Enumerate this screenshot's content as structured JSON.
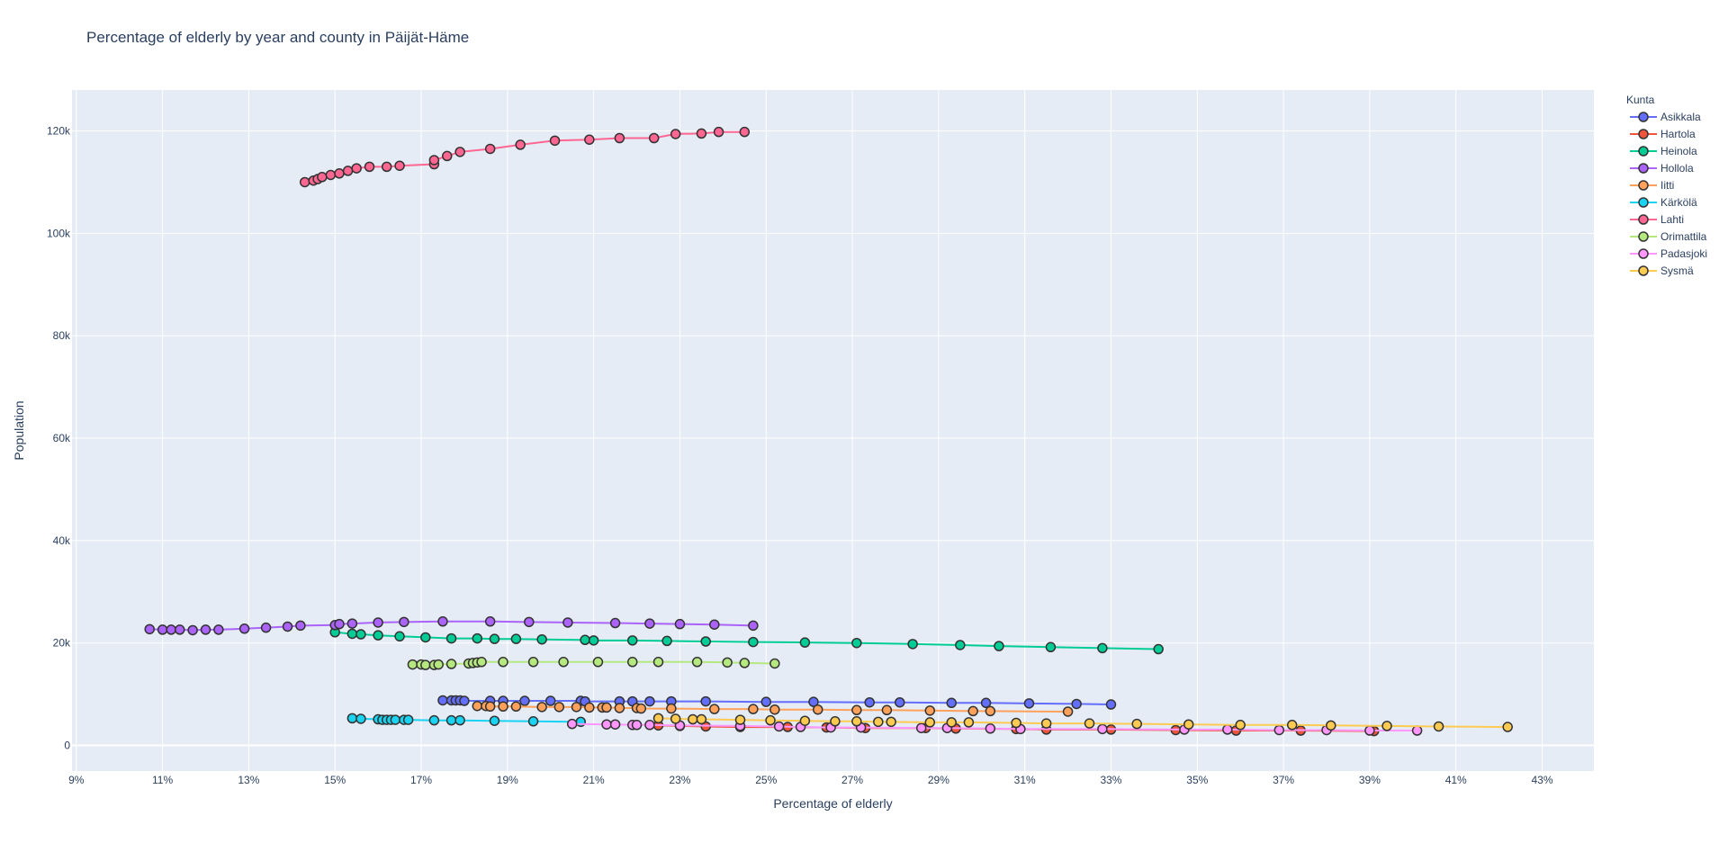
{
  "chart_data": {
    "type": "line",
    "title": "Percentage of elderly by year and county in Päijät-Häme",
    "xlabel": "Percentage of elderly",
    "ylabel": "Population",
    "xlim": [
      8.9,
      44.2
    ],
    "ylim": [
      -5000,
      128000
    ],
    "x_ticks": [
      9,
      11,
      13,
      15,
      17,
      19,
      21,
      23,
      25,
      27,
      29,
      31,
      33,
      35,
      37,
      39,
      41,
      43
    ],
    "x_tick_labels": [
      "9%",
      "11%",
      "13%",
      "15%",
      "17%",
      "19%",
      "21%",
      "23%",
      "25%",
      "27%",
      "29%",
      "31%",
      "33%",
      "35%",
      "37%",
      "39%",
      "41%",
      "43%"
    ],
    "y_ticks": [
      0,
      20000,
      40000,
      60000,
      80000,
      100000,
      120000
    ],
    "y_tick_labels": [
      "0",
      "20k",
      "40k",
      "60k",
      "80k",
      "100k",
      "120k"
    ],
    "grid": true,
    "legend_title": "Kunta",
    "legend_position": "right",
    "series": [
      {
        "name": "Asikkala",
        "color": "#636efa",
        "x": [
          17.5,
          17.7,
          17.8,
          17.9,
          18.0,
          18.6,
          18.9,
          19.4,
          20.0,
          20.7,
          20.8,
          21.6,
          21.9,
          22.3,
          22.8,
          23.6,
          25.0,
          26.1,
          27.4,
          28.1,
          29.3,
          30.1,
          31.1,
          32.2,
          33.0
        ],
        "y": [
          8800,
          8800,
          8800,
          8800,
          8700,
          8700,
          8700,
          8700,
          8700,
          8700,
          8600,
          8600,
          8600,
          8600,
          8600,
          8600,
          8500,
          8500,
          8400,
          8400,
          8300,
          8300,
          8200,
          8100,
          8000
        ]
      },
      {
        "name": "Hartola",
        "color": "#EF553B",
        "x": [
          22.5,
          23.0,
          23.6,
          24.4,
          25.5,
          26.4,
          27.3,
          28.7,
          29.4,
          30.8,
          31.5,
          33.0,
          34.5,
          35.9,
          37.4,
          39.1
        ],
        "y": [
          3900,
          3800,
          3700,
          3600,
          3600,
          3500,
          3400,
          3400,
          3300,
          3200,
          3100,
          3100,
          3000,
          2900,
          2900,
          2800
        ]
      },
      {
        "name": "Heinola",
        "color": "#00cc96",
        "x": [
          15.0,
          15.4,
          15.6,
          16.0,
          16.5,
          17.1,
          17.7,
          18.3,
          18.7,
          19.2,
          19.8,
          20.8,
          21.0,
          21.9,
          22.7,
          23.6,
          24.7,
          25.9,
          27.1,
          28.4,
          29.5,
          30.4,
          31.6,
          32.8,
          34.1
        ],
        "y": [
          22100,
          21800,
          21700,
          21500,
          21300,
          21100,
          20900,
          20900,
          20800,
          20800,
          20700,
          20600,
          20500,
          20500,
          20400,
          20300,
          20200,
          20100,
          20000,
          19800,
          19600,
          19400,
          19200,
          19000,
          18800
        ]
      },
      {
        "name": "Hollola",
        "color": "#ab63fa",
        "x": [
          10.7,
          11.0,
          11.2,
          11.4,
          11.7,
          12.0,
          12.3,
          12.9,
          13.4,
          13.9,
          14.2,
          15.0,
          15.1,
          15.4,
          16.0,
          16.6,
          17.5,
          18.6,
          19.5,
          20.4,
          21.5,
          22.3,
          23.0,
          23.8,
          24.7
        ],
        "y": [
          22700,
          22600,
          22600,
          22600,
          22500,
          22600,
          22600,
          22800,
          23000,
          23200,
          23400,
          23500,
          23700,
          23800,
          24000,
          24100,
          24200,
          24200,
          24100,
          24000,
          23900,
          23800,
          23700,
          23600,
          23400
        ]
      },
      {
        "name": "Iitti",
        "color": "#FFA15A",
        "x": [
          18.3,
          18.5,
          18.6,
          18.9,
          19.2,
          19.8,
          20.2,
          20.6,
          20.9,
          21.2,
          21.3,
          21.6,
          22.0,
          22.1,
          22.8,
          23.8,
          24.7,
          25.2,
          26.2,
          27.1,
          27.8,
          28.8,
          29.8,
          30.2,
          32.0
        ],
        "y": [
          7700,
          7700,
          7600,
          7600,
          7600,
          7500,
          7500,
          7500,
          7400,
          7400,
          7400,
          7300,
          7300,
          7200,
          7200,
          7100,
          7100,
          7000,
          7000,
          6900,
          6900,
          6800,
          6700,
          6700,
          6600
        ]
      },
      {
        "name": "Kärkölä",
        "color": "#19d3f3",
        "x": [
          15.4,
          15.6,
          16.0,
          16.1,
          16.2,
          16.3,
          16.4,
          16.6,
          16.7,
          17.3,
          17.7,
          17.9,
          18.7,
          19.6,
          20.7
        ],
        "y": [
          5300,
          5200,
          5100,
          5000,
          5000,
          5000,
          5000,
          5000,
          5000,
          4900,
          4900,
          4900,
          4800,
          4700,
          4600
        ]
      },
      {
        "name": "Lahti",
        "color": "#FF6692",
        "x": [
          14.3,
          14.5,
          14.6,
          14.7,
          14.9,
          15.1,
          15.3,
          15.5,
          15.8,
          16.2,
          16.5,
          17.3,
          17.3,
          17.6,
          17.9,
          18.6,
          19.3,
          20.1,
          20.9,
          21.6,
          22.4,
          22.9,
          23.5,
          23.9,
          24.5
        ],
        "y": [
          110000,
          110300,
          110600,
          111000,
          111400,
          111700,
          112200,
          112700,
          113000,
          113000,
          113200,
          113500,
          114300,
          115100,
          115900,
          116500,
          117300,
          118100,
          118300,
          118600,
          118600,
          119400,
          119500,
          119800,
          119800
        ]
      },
      {
        "name": "Orimattila",
        "color": "#B6E880",
        "x": [
          16.8,
          17.0,
          17.1,
          17.3,
          17.4,
          17.7,
          18.1,
          18.2,
          18.3,
          18.4,
          18.9,
          19.6,
          20.3,
          21.1,
          21.9,
          22.5,
          23.4,
          24.1,
          24.5,
          25.2
        ],
        "y": [
          15800,
          15800,
          15700,
          15700,
          15800,
          15900,
          16000,
          16100,
          16200,
          16300,
          16300,
          16300,
          16300,
          16300,
          16300,
          16300,
          16300,
          16200,
          16100,
          16000
        ]
      },
      {
        "name": "Padasjoki",
        "color": "#FF97FF",
        "x": [
          20.5,
          21.3,
          21.5,
          21.9,
          22.0,
          22.3,
          23.0,
          24.4,
          25.3,
          25.8,
          26.5,
          27.2,
          28.6,
          29.2,
          30.2,
          30.9,
          32.8,
          34.7,
          35.7,
          36.9,
          38.0,
          39.0,
          40.1
        ],
        "y": [
          4200,
          4100,
          4100,
          4000,
          4000,
          4000,
          3900,
          3800,
          3700,
          3600,
          3500,
          3500,
          3400,
          3400,
          3300,
          3200,
          3200,
          3100,
          3100,
          3000,
          3000,
          2900,
          2900
        ]
      },
      {
        "name": "Sysmä",
        "color": "#FECB52",
        "x": [
          22.5,
          22.9,
          23.3,
          23.5,
          24.4,
          25.1,
          25.9,
          26.6,
          27.1,
          27.6,
          27.9,
          28.8,
          29.3,
          29.7,
          30.8,
          31.5,
          32.5,
          33.6,
          34.8,
          36.0,
          37.2,
          38.1,
          39.4,
          40.6,
          42.2
        ],
        "y": [
          5300,
          5200,
          5100,
          5100,
          5000,
          4900,
          4800,
          4700,
          4700,
          4600,
          4600,
          4500,
          4500,
          4500,
          4400,
          4300,
          4300,
          4200,
          4100,
          4000,
          4000,
          3900,
          3800,
          3700,
          3600
        ]
      }
    ]
  }
}
